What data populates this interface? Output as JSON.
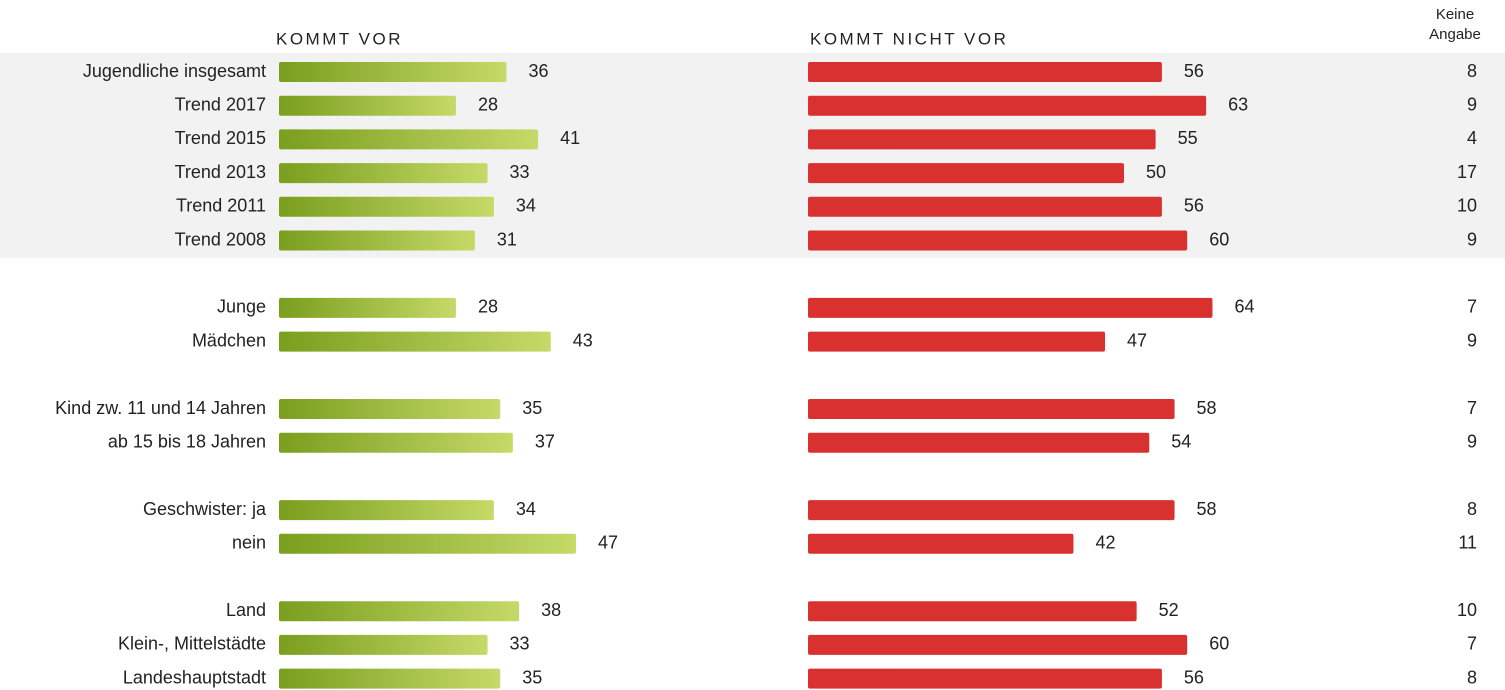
{
  "chart_data": {
    "type": "bar",
    "categories": [
      "Jugendliche insgesamt",
      "Trend 2017",
      "Trend 2015",
      "Trend 2013",
      "Trend 2011",
      "Trend 2008",
      null,
      "Junge",
      "Mädchen",
      null,
      "Kind zw. 11 und 14 Jahren",
      "ab 15 bis 18 Jahren",
      null,
      "Geschwister: ja",
      "nein",
      null,
      "Land",
      "Klein-, Mittelstädte",
      "Landeshauptstadt"
    ],
    "series": [
      {
        "name": "KOMMT VOR",
        "color": "#c5da68",
        "values": [
          36,
          28,
          41,
          33,
          34,
          31,
          null,
          28,
          43,
          null,
          35,
          37,
          null,
          34,
          47,
          null,
          38,
          33,
          35
        ]
      },
      {
        "name": "KOMMT NICHT VOR",
        "color": "#d93030",
        "values": [
          56,
          63,
          55,
          50,
          56,
          60,
          null,
          64,
          47,
          null,
          58,
          54,
          null,
          58,
          42,
          null,
          52,
          60,
          56
        ]
      },
      {
        "name": "Keine Angabe",
        "values": [
          8,
          9,
          4,
          17,
          10,
          9,
          null,
          7,
          9,
          null,
          7,
          9,
          null,
          8,
          11,
          null,
          10,
          7,
          8
        ]
      }
    ]
  }
}
